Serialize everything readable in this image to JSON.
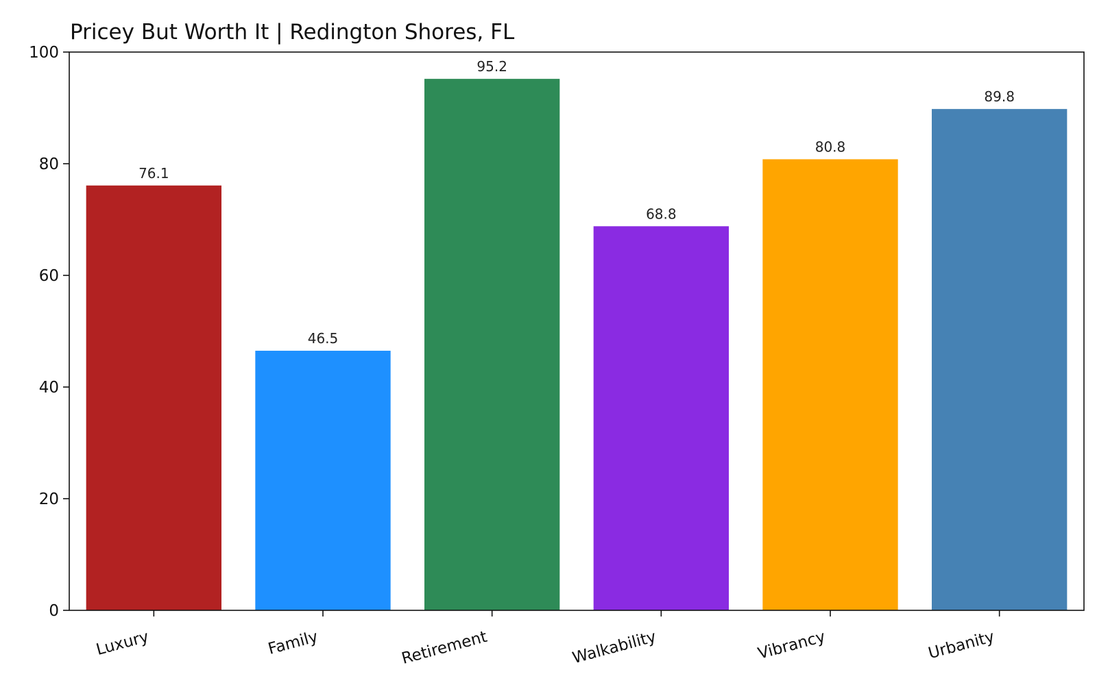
{
  "chart_data": {
    "type": "bar",
    "title": "Pricey But Worth It | Redington Shores, FL",
    "xlabel": "",
    "ylabel": "",
    "categories": [
      "Luxury",
      "Family",
      "Retirement",
      "Walkability",
      "Vibrancy",
      "Urbanity"
    ],
    "values": [
      76.1,
      46.5,
      95.2,
      68.8,
      80.8,
      89.8
    ],
    "value_labels": [
      "76.1",
      "46.5",
      "95.2",
      "68.8",
      "80.8",
      "89.8"
    ],
    "colors": [
      "#b22222",
      "#1e90ff",
      "#2e8b57",
      "#8a2be2",
      "#ffa500",
      "#4682b4"
    ],
    "ylim": [
      0,
      100
    ],
    "yticks": [
      0,
      20,
      40,
      60,
      80,
      100
    ],
    "ytick_labels": [
      "0",
      "20",
      "40",
      "60",
      "80",
      "100"
    ],
    "grid": false,
    "legend": "none",
    "xtick_rotation_deg": -15
  }
}
